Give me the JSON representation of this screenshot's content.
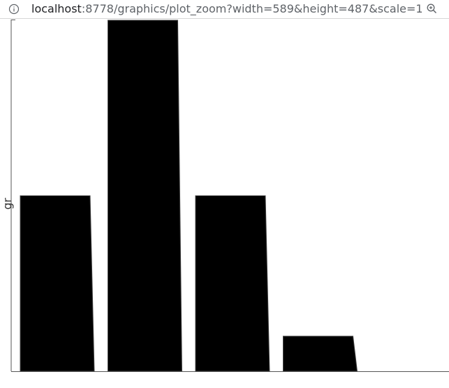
{
  "browser": {
    "url_host": "localhost",
    "url_path": ":8778/graphics/plot_zoom?width=589&height=487&scale=1",
    "icons": {
      "info": "info-icon",
      "zoom": "zoom-in-icon"
    }
  },
  "chart_data": {
    "type": "bar",
    "categories": [
      "",
      "",
      "",
      ""
    ],
    "values": [
      5,
      10,
      5,
      1
    ],
    "ylabel": "gr",
    "xlabel": "",
    "title": "",
    "ylim": [
      0,
      10
    ],
    "grid": false,
    "legend": "none",
    "bar_color": "#000000",
    "axis_color": "#555555"
  }
}
